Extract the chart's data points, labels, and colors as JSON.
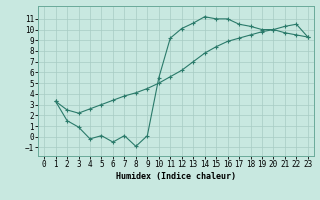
{
  "xlabel": "Humidex (Indice chaleur)",
  "xlim": [
    -0.5,
    23.5
  ],
  "ylim": [
    -1.8,
    12.2
  ],
  "yticks": [
    -1,
    0,
    1,
    2,
    3,
    4,
    5,
    6,
    7,
    8,
    9,
    10,
    11
  ],
  "xticks": [
    0,
    1,
    2,
    3,
    4,
    5,
    6,
    7,
    8,
    9,
    10,
    11,
    12,
    13,
    14,
    15,
    16,
    17,
    18,
    19,
    20,
    21,
    22,
    23
  ],
  "line_color": "#2a7a6a",
  "bg_color": "#c8e8e0",
  "grid_color": "#a8ccc4",
  "line1_x": [
    1,
    2,
    3,
    4,
    5,
    6,
    7,
    8,
    9,
    10,
    11,
    12,
    13,
    14,
    15,
    16,
    17,
    18,
    19,
    20,
    21,
    22,
    23
  ],
  "line1_y": [
    3.3,
    1.5,
    0.9,
    -0.2,
    0.1,
    -0.5,
    0.1,
    -0.9,
    0.1,
    5.5,
    9.2,
    10.1,
    10.6,
    11.2,
    11.0,
    11.0,
    10.5,
    10.3,
    10.0,
    10.0,
    9.7,
    9.5,
    9.3
  ],
  "line2_x": [
    1,
    2,
    3,
    4,
    5,
    6,
    7,
    8,
    9,
    10,
    11,
    12,
    13,
    14,
    15,
    16,
    17,
    18,
    19,
    20,
    21,
    22,
    23
  ],
  "line2_y": [
    3.3,
    2.5,
    2.2,
    2.6,
    3.0,
    3.4,
    3.8,
    4.1,
    4.5,
    5.0,
    5.6,
    6.2,
    7.0,
    7.8,
    8.4,
    8.9,
    9.2,
    9.5,
    9.8,
    10.0,
    10.3,
    10.5,
    9.3
  ]
}
